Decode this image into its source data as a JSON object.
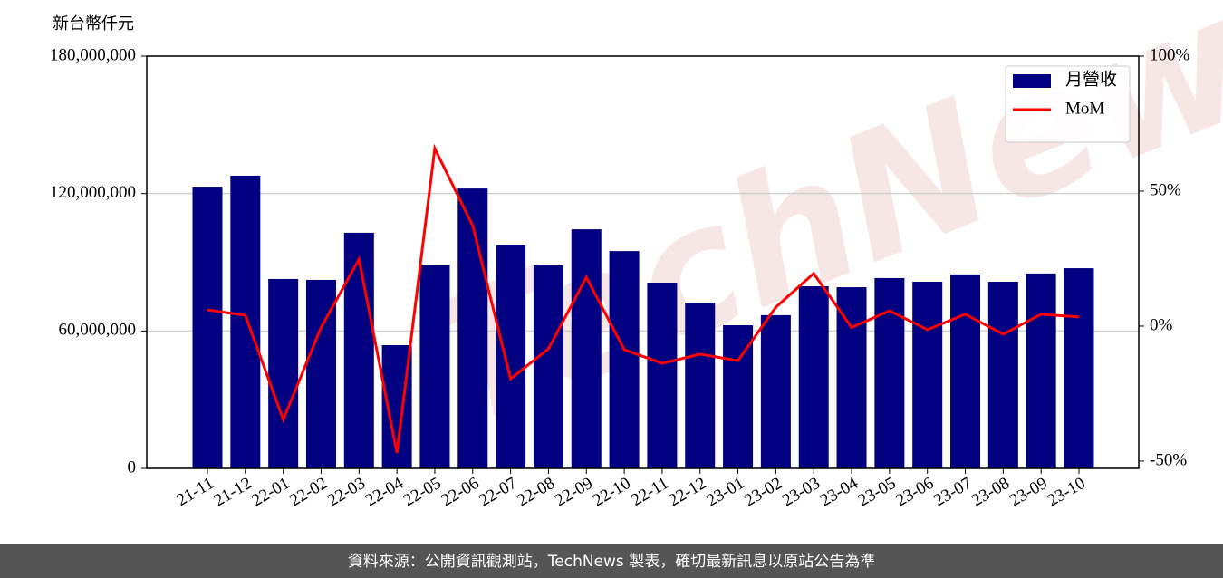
{
  "chart_data": {
    "type": "combo",
    "y_label": "新台幣仟元",
    "watermark": "TechNews",
    "footer": "資料來源：公開資訊觀測站，TechNews 製表，確切最新訊息以原站公告為準",
    "categories": [
      "21-11",
      "21-12",
      "22-01",
      "22-02",
      "22-03",
      "22-04",
      "22-05",
      "22-06",
      "22-07",
      "22-08",
      "22-09",
      "22-10",
      "22-11",
      "22-12",
      "23-01",
      "23-02",
      "23-03",
      "23-04",
      "23-05",
      "23-06",
      "23-07",
      "23-08",
      "23-09",
      "23-10"
    ],
    "series": [
      {
        "name": "月營收",
        "type": "bar",
        "axis": "y",
        "color": "#000080",
        "values": [
          123000000,
          127800000,
          82700000,
          82300000,
          102900000,
          53800000,
          89000000,
          122200000,
          97700000,
          88600000,
          104400000,
          94900000,
          81100000,
          72400000,
          62500000,
          66900000,
          79500000,
          79100000,
          83100000,
          81500000,
          84700000,
          81500000,
          85100000,
          87400000
        ]
      },
      {
        "name": "MoM",
        "type": "line",
        "axis": "y2",
        "color": "#ff0000",
        "values": [
          6.0,
          4.0,
          -34.6,
          -0.5,
          24.8,
          -47.0,
          65.8,
          37.2,
          -19.5,
          -8.4,
          18.1,
          -8.7,
          -13.8,
          -10.4,
          -12.8,
          7.0,
          19.5,
          -0.5,
          5.7,
          -1.3,
          4.4,
          -3.0,
          4.4,
          3.4
        ]
      }
    ],
    "ylim": [
      0,
      180000000
    ],
    "yticks": [
      {
        "value": 0,
        "label": "0"
      },
      {
        "value": 60000000,
        "label": "60,000,000"
      },
      {
        "value": 120000000,
        "label": "120,000,000"
      },
      {
        "value": 180000000,
        "label": "180,000,000"
      }
    ],
    "y2lim": [
      -52.7,
      100
    ],
    "y2ticks": [
      {
        "value": -50,
        "label": "-50%"
      },
      {
        "value": 0,
        "label": "0%"
      },
      {
        "value": 50,
        "label": "50%"
      },
      {
        "value": 100,
        "label": "100%"
      }
    ],
    "grid": true,
    "legend": "upper right"
  }
}
